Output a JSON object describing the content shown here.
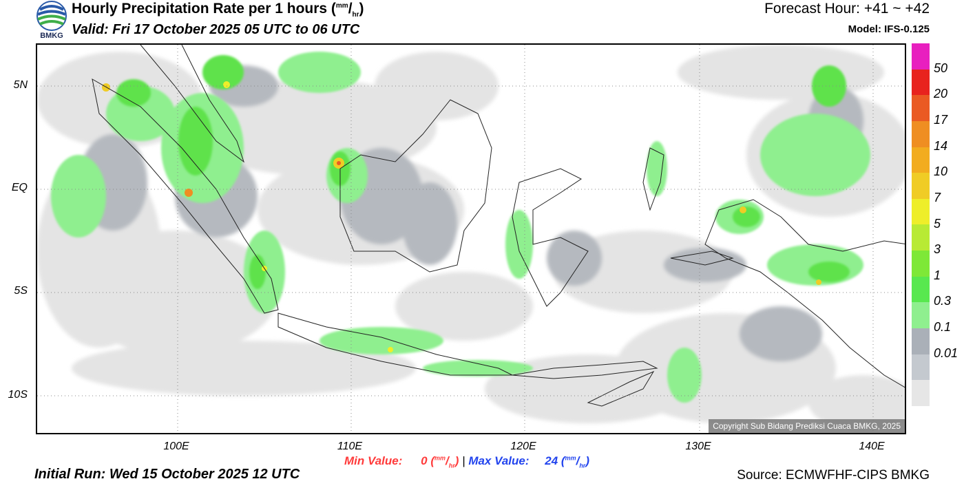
{
  "header": {
    "title_main": "Hourly Precipitation Rate per 1 hours (",
    "title_unit_top": "mm",
    "title_unit_sep": "/",
    "title_unit_bottom": "hr",
    "title_close": ")",
    "valid": "Valid: Fri 17 October 2025 05 UTC to 06 UTC",
    "forecast_hour": "Forecast Hour: +41 ~ +42",
    "model": "Model: IFS-0.125"
  },
  "logo": {
    "text": "BMKG"
  },
  "map": {
    "lat_labels": [
      "5N",
      "EQ",
      "5S",
      "10S"
    ],
    "lon_labels": [
      "100E",
      "110E",
      "120E",
      "130E",
      "140E"
    ],
    "copyright": "Copyright Sub Bidang Prediksi Cuaca BMKG, 2025"
  },
  "colorbar": {
    "labels": [
      "50",
      "20",
      "17",
      "14",
      "10",
      "7",
      "5",
      "3",
      "1",
      "0.3",
      "0.1",
      "0.01"
    ],
    "colors": [
      "#e81fbf",
      "#e8231e",
      "#ea5a23",
      "#ef8e22",
      "#f2ac1f",
      "#f0cc25",
      "#eeee2a",
      "#b8ea34",
      "#7ee837",
      "#58e84f",
      "#8fef8f",
      "#aab0b8",
      "#c4c9cf",
      "#e6e6e6"
    ]
  },
  "footer": {
    "min_label": "Min Value:",
    "min_value": "0",
    "max_label": "Max Value:",
    "max_value": "24",
    "unit_top": "mm",
    "unit_bottom": "hr",
    "separator": "|",
    "initial_run": "Initial Run: Wed 15 October 2025 12 UTC",
    "source": "Source: ECMWFHF-CIPS BMKG"
  }
}
